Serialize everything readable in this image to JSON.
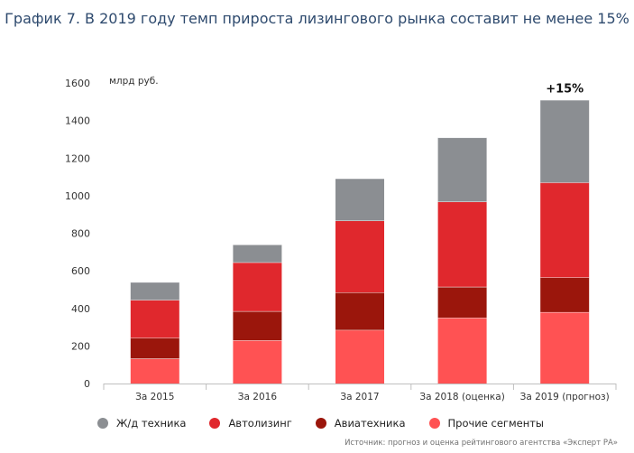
{
  "title": "График 7. В 2019 году темп прироста лизингового рынка составит не менее 15%",
  "source": "Источник: прогноз и оценка рейтингового агентства «Эксперт РА»",
  "colors": {
    "rail": "#8b8e92",
    "auto": "#e0282d",
    "avia": "#9b160c",
    "other": "#ff5253"
  },
  "chart_data": {
    "type": "bar",
    "stacked": true,
    "categories": [
      "За 2015",
      "За 2016",
      "За 2017",
      "За 2018 (оценка)",
      "За 2019 (прогноз)"
    ],
    "series": [
      {
        "name": "Прочие сегменты",
        "key": "other",
        "values": [
          133,
          230,
          285,
          350,
          380
        ]
      },
      {
        "name": "Авиатехника",
        "key": "avia",
        "values": [
          110,
          155,
          200,
          165,
          185
        ]
      },
      {
        "name": "Автолизинг",
        "key": "auto",
        "values": [
          202,
          260,
          382,
          453,
          505
        ]
      },
      {
        "name": "Ж/д техника",
        "key": "rail",
        "values": [
          95,
          95,
          225,
          342,
          440
        ]
      }
    ],
    "legend_order": [
      "rail",
      "auto",
      "avia",
      "other"
    ],
    "ylabel": "млрд руб.",
    "ylim": [
      0,
      1600
    ],
    "yticks": [
      0,
      200,
      400,
      600,
      800,
      1000,
      1200,
      1400,
      1600
    ],
    "annotation": "+15%",
    "grid": false,
    "legend_position": "bottom"
  }
}
